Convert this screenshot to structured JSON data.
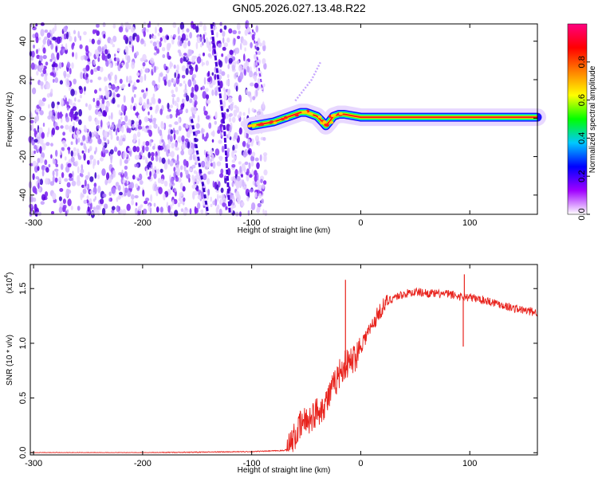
{
  "title": "GN05.2026.027.13.48.R22",
  "chart_data": [
    {
      "type": "heatmap",
      "xlabel": "Height of straight line (km)",
      "ylabel": "Frequency (Hz)",
      "xlim": [
        -303,
        162
      ],
      "ylim": [
        -50,
        49
      ],
      "xticks": [
        -300,
        -200,
        -100,
        0,
        100
      ],
      "xtick_labels": [
        "-300",
        "-200",
        "-100",
        "0",
        "100"
      ],
      "yticks": [
        -40,
        -20,
        0,
        20,
        40
      ],
      "ytick_labels": [
        "-40",
        "-20",
        "0",
        "20",
        "40"
      ],
      "colorbar": {
        "label": "Normalized spectral amplitude",
        "range": [
          0.0,
          1.0
        ],
        "ticks": [
          0.0,
          0.2,
          0.4,
          0.6,
          0.8
        ],
        "tick_labels": [
          "0.0",
          "0.2",
          "0.4",
          "0.6",
          "0.8"
        ],
        "colors": [
          "#ffffff",
          "#a000ff",
          "#0000ff",
          "#00c8ff",
          "#00ff00",
          "#ffff00",
          "#ff8000",
          "#ff0000",
          "#ff0080"
        ]
      },
      "noise_region": {
        "x_range": [
          -303,
          -87
        ],
        "y_range": [
          -50,
          49
        ]
      },
      "signal_track": {
        "x": [
          -100,
          -90,
          -80,
          -70,
          -60,
          -55,
          -50,
          -45,
          -40,
          -35,
          -32,
          -29,
          -25,
          -20,
          -15,
          0,
          20,
          40,
          60,
          80,
          100,
          120,
          140,
          162
        ],
        "y": [
          -4,
          -3,
          -2,
          0,
          2,
          3,
          3,
          2,
          1,
          -2,
          -4,
          -2,
          1,
          2,
          2,
          0.5,
          0.5,
          0.5,
          0.5,
          0.5,
          0.5,
          0.5,
          0.5,
          0.5
        ]
      }
    },
    {
      "type": "line",
      "xlabel": "Height of straight line (km)",
      "ylabel": "SNR (10 * v/v)",
      "yscale_label": "(x10",
      "yscale_exp": "4",
      "yscale_close": ")",
      "xlim": [
        -303,
        162
      ],
      "ylim": [
        -0.02,
        1.72
      ],
      "xticks": [
        -300,
        -200,
        -100,
        0,
        100
      ],
      "xtick_labels": [
        "-300",
        "-200",
        "-100",
        "0",
        "100"
      ],
      "yticks": [
        0.0,
        0.5,
        1.0,
        1.5
      ],
      "ytick_labels": [
        "0.0",
        "0.5",
        "1.0",
        "1.5"
      ],
      "series": [
        {
          "color": "#e8231d",
          "x": [
            -303,
            -200,
            -100,
            -70,
            -66,
            -60,
            -55,
            -50,
            -45,
            -40,
            -35,
            -30,
            -25,
            -20,
            -15,
            -10,
            -5,
            0,
            5,
            10,
            15,
            20,
            25,
            30,
            40,
            50,
            60,
            70,
            80,
            90,
            100,
            110,
            120,
            130,
            140,
            150,
            162
          ],
          "values": [
            0.0,
            0.0,
            0.01,
            0.02,
            0.05,
            0.15,
            0.25,
            0.3,
            0.32,
            0.38,
            0.42,
            0.5,
            0.6,
            0.72,
            0.8,
            0.82,
            0.88,
            0.98,
            1.07,
            1.15,
            1.25,
            1.33,
            1.38,
            1.42,
            1.45,
            1.47,
            1.46,
            1.45,
            1.45,
            1.43,
            1.42,
            1.4,
            1.38,
            1.35,
            1.32,
            1.3,
            1.28
          ]
        }
      ],
      "spikes": [
        {
          "x": -14,
          "y": 1.58
        },
        {
          "x": 94,
          "y": 0.97
        },
        {
          "x": 95,
          "y": 1.63
        }
      ]
    }
  ]
}
